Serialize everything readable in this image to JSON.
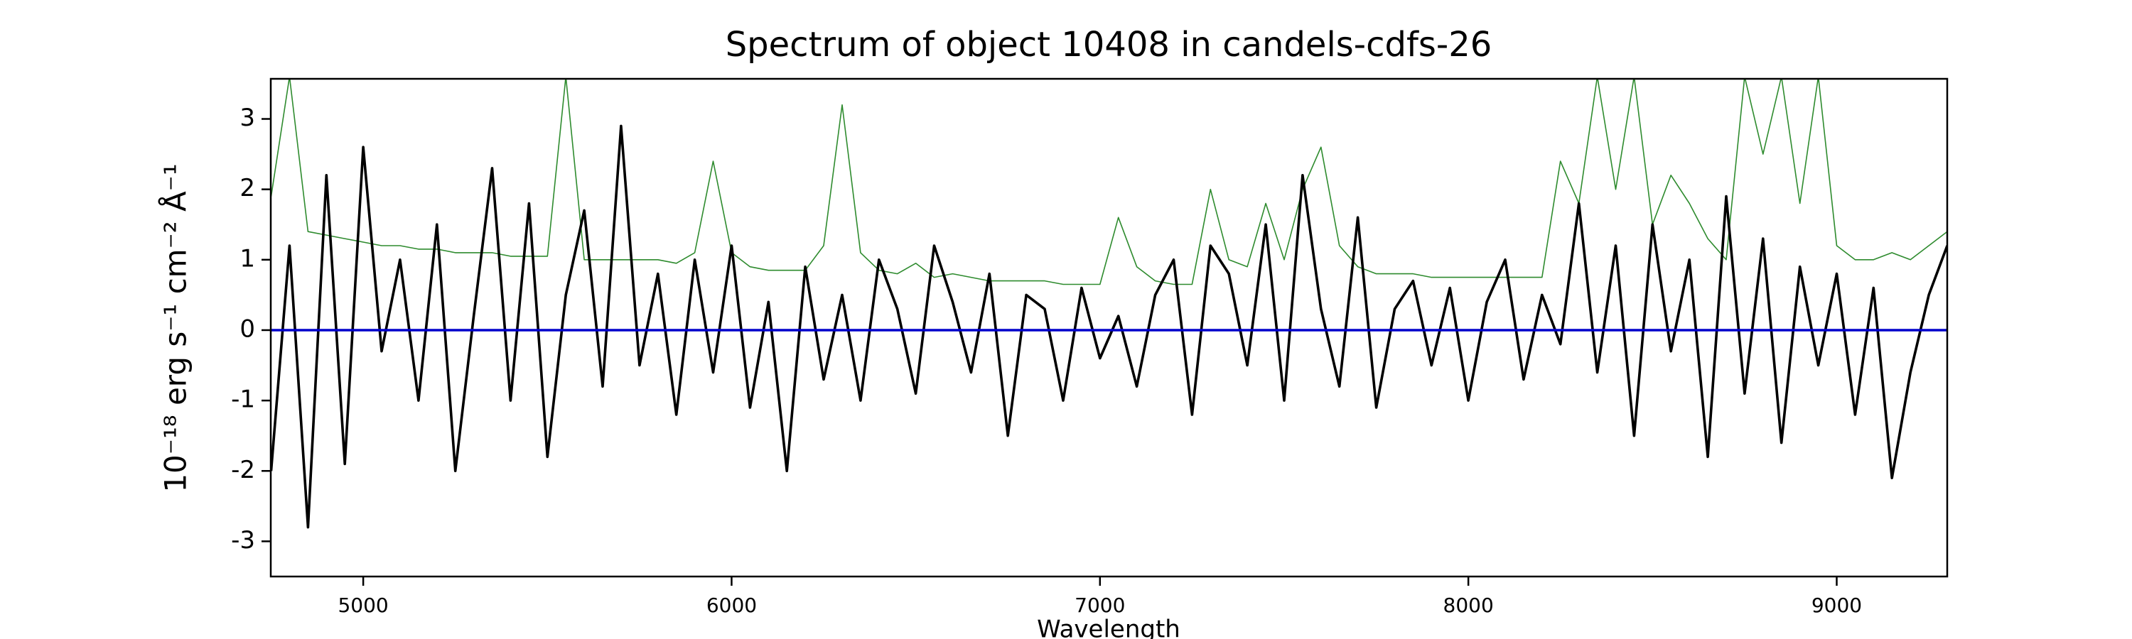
{
  "chart_data": {
    "type": "line",
    "title": "Spectrum of object 10408 in candels-cdfs-26",
    "xlabel": "Wavelength",
    "ylabel": "10⁻¹⁸ erg s⁻¹ cm⁻² Å⁻¹",
    "x": [
      4750,
      4800,
      4850,
      4900,
      4950,
      5000,
      5050,
      5100,
      5150,
      5200,
      5250,
      5300,
      5350,
      5400,
      5450,
      5500,
      5550,
      5600,
      5650,
      5700,
      5750,
      5800,
      5850,
      5900,
      5950,
      6000,
      6050,
      6100,
      6150,
      6200,
      6250,
      6300,
      6350,
      6400,
      6450,
      6500,
      6550,
      6600,
      6650,
      6700,
      6750,
      6800,
      6850,
      6900,
      6950,
      7000,
      7050,
      7100,
      7150,
      7200,
      7250,
      7300,
      7350,
      7400,
      7450,
      7500,
      7550,
      7600,
      7650,
      7700,
      7750,
      7800,
      7850,
      7900,
      7950,
      8000,
      8050,
      8100,
      8150,
      8200,
      8250,
      8300,
      8350,
      8400,
      8450,
      8500,
      8550,
      8600,
      8650,
      8700,
      8750,
      8800,
      8850,
      8900,
      8950,
      9000,
      9050,
      9100,
      9150,
      9200,
      9250,
      9300
    ],
    "series": [
      {
        "color": "#2e8b2e",
        "values": [
          1.9,
          3.6,
          1.4,
          1.35,
          1.3,
          1.25,
          1.2,
          1.2,
          1.15,
          1.15,
          1.1,
          1.1,
          1.1,
          1.05,
          1.05,
          1.05,
          3.6,
          1.0,
          1.0,
          1.0,
          1.0,
          1.0,
          0.95,
          1.1,
          2.4,
          1.1,
          0.9,
          0.85,
          0.85,
          0.85,
          1.2,
          3.2,
          1.1,
          0.85,
          0.8,
          0.95,
          0.75,
          0.8,
          0.75,
          0.7,
          0.7,
          0.7,
          0.7,
          0.65,
          0.65,
          0.65,
          1.6,
          0.9,
          0.7,
          0.65,
          0.65,
          2.0,
          1.0,
          0.9,
          1.8,
          1.0,
          2.0,
          2.6,
          1.2,
          0.9,
          0.8,
          0.8,
          0.8,
          0.75,
          0.75,
          0.75,
          0.75,
          0.75,
          0.75,
          0.75,
          2.4,
          1.8,
          3.6,
          2.0,
          3.6,
          1.5,
          2.2,
          1.8,
          1.3,
          1.0,
          3.6,
          2.5,
          3.6,
          1.8,
          3.6,
          1.2,
          1.0,
          1.0,
          1.1,
          1.0,
          1.2,
          1.4
        ]
      },
      {
        "color": "#000000",
        "values": [
          -2.0,
          1.2,
          -2.8,
          2.2,
          -1.9,
          2.6,
          -0.3,
          1.0,
          -1.0,
          1.5,
          -2.0,
          0.2,
          2.3,
          -1.0,
          1.8,
          -1.8,
          0.5,
          1.7,
          -0.8,
          2.9,
          -0.5,
          0.8,
          -1.2,
          1.0,
          -0.6,
          1.2,
          -1.1,
          0.4,
          -2.0,
          0.9,
          -0.7,
          0.5,
          -1.0,
          1.0,
          0.3,
          -0.9,
          1.2,
          0.4,
          -0.6,
          0.8,
          -1.5,
          0.5,
          0.3,
          -1.0,
          0.6,
          -0.4,
          0.2,
          -0.8,
          0.5,
          1.0,
          -1.2,
          1.2,
          0.8,
          -0.5,
          1.5,
          -1.0,
          2.2,
          0.3,
          -0.8,
          1.6,
          -1.1,
          0.3,
          0.7,
          -0.5,
          0.6,
          -1.0,
          0.4,
          1.0,
          -0.7,
          0.5,
          -0.2,
          1.8,
          -0.6,
          1.2,
          -1.5,
          1.5,
          -0.3,
          1.0,
          -1.8,
          1.9,
          -0.9,
          1.3,
          -1.6,
          0.9,
          -0.5,
          0.8,
          -1.2,
          0.6,
          -2.1,
          -0.6,
          0.5,
          1.2
        ]
      },
      {
        "color": "#0000cc",
        "values": [
          0,
          0,
          0,
          0,
          0,
          0,
          0,
          0,
          0,
          0,
          0,
          0,
          0,
          0,
          0,
          0,
          0,
          0,
          0,
          0,
          0,
          0,
          0,
          0,
          0,
          0,
          0,
          0,
          0,
          0,
          0,
          0,
          0,
          0,
          0,
          0,
          0,
          0,
          0,
          0,
          0,
          0,
          0,
          0,
          0,
          0,
          0,
          0,
          0,
          0,
          0,
          0,
          0,
          0,
          0,
          0,
          0,
          0,
          0,
          0,
          0,
          0,
          0,
          0,
          0,
          0,
          0,
          0,
          0,
          0,
          0,
          0,
          0,
          0,
          0,
          0,
          0,
          0,
          0,
          0,
          0,
          0,
          0,
          0,
          0,
          0,
          0,
          0,
          0,
          0,
          0,
          0
        ]
      }
    ],
    "xlim": [
      4749,
      9300
    ],
    "xticks": [
      5000,
      6000,
      7000,
      8000,
      9000
    ],
    "ylim": [
      -3.5,
      3.57
    ],
    "yticks": [
      -3,
      -2,
      -1,
      0,
      1,
      2,
      3
    ]
  }
}
